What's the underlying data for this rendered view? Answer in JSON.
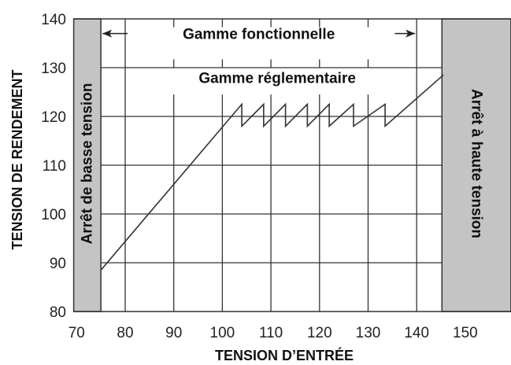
{
  "chart_data": {
    "type": "line",
    "title": "",
    "xlabel": "TENSION D’ENTRÉE",
    "ylabel": "TENSION DE RENDEMENT",
    "xlim": [
      69.4,
      159.4
    ],
    "ylim": [
      80,
      140
    ],
    "xticks": [
      "70",
      "80",
      "90",
      "100",
      "110",
      "120",
      "130",
      "140",
      "150"
    ],
    "yticks": [
      "80",
      "90",
      "100",
      "110",
      "120",
      "130",
      "140"
    ],
    "grid": true,
    "series": [
      {
        "x": [
          75,
          104,
          104,
          108.5,
          108.5,
          113,
          113,
          117.5,
          117.5,
          122,
          122,
          127,
          127,
          133.5,
          133.5,
          145.5
        ],
        "y": [
          88.5,
          122.5,
          118,
          122.5,
          118,
          122.5,
          118,
          122.5,
          118,
          122.5,
          118,
          122.5,
          118,
          122.5,
          118,
          128.5
        ]
      }
    ],
    "regions": [
      {
        "label": "Arrêt de basse tension",
        "x": [
          69.4,
          75
        ],
        "color": "#c4c4c4"
      },
      {
        "label": "Arrêt à haute tension",
        "x": [
          145.2,
          159.4
        ],
        "color": "#c4c4c4"
      }
    ],
    "annotations": {
      "functional_range": {
        "label": "Gamme fonctionnelle",
        "x": [
          75,
          140
        ],
        "y": 137
      },
      "regulatory_range": {
        "label": "Gamme réglementaire",
        "y": 128
      }
    }
  }
}
